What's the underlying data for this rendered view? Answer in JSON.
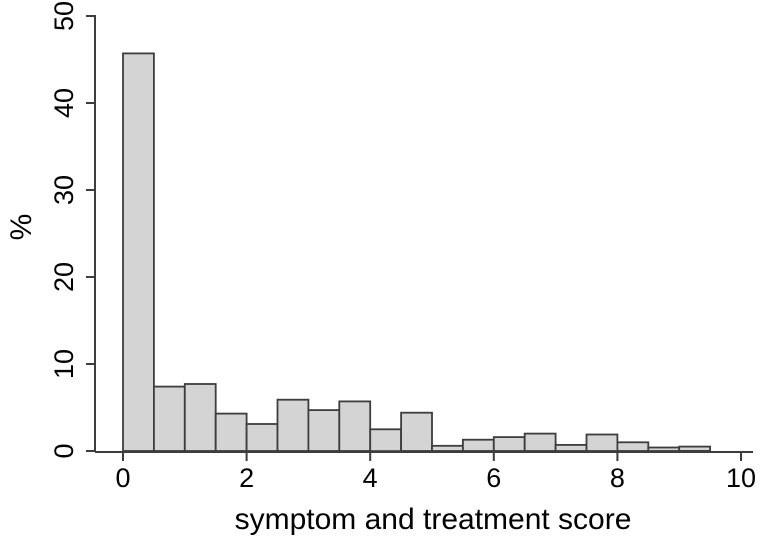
{
  "figure": {
    "background": "#ffffff",
    "axis_color": "#3d3d3d",
    "text_color": "#000000"
  },
  "chart_data": {
    "type": "bar",
    "subtype": "histogram",
    "title": "",
    "xlabel": "symptom and treatment score",
    "ylabel": "%",
    "bin_edges": [
      0,
      0.5,
      1,
      1.5,
      2,
      2.5,
      3,
      3.5,
      4,
      4.5,
      5,
      5.5,
      6,
      6.5,
      7,
      7.5,
      8,
      8.5,
      9,
      9.5
    ],
    "values": [
      45.7,
      7.4,
      7.7,
      4.3,
      3.1,
      5.9,
      4.7,
      5.7,
      2.5,
      4.4,
      0.6,
      1.3,
      1.6,
      2.0,
      0.7,
      1.9,
      1.0,
      0.4,
      0.5
    ],
    "x_ticks": [
      0,
      2,
      4,
      6,
      8,
      10
    ],
    "y_ticks": [
      0,
      10,
      20,
      30,
      40,
      50
    ],
    "xlim": [
      0,
      10
    ],
    "ylim": [
      0,
      50
    ],
    "grid": false,
    "legend": null,
    "bar_fill": "#d4d4d4",
    "bar_stroke": "#3d3d3d"
  }
}
